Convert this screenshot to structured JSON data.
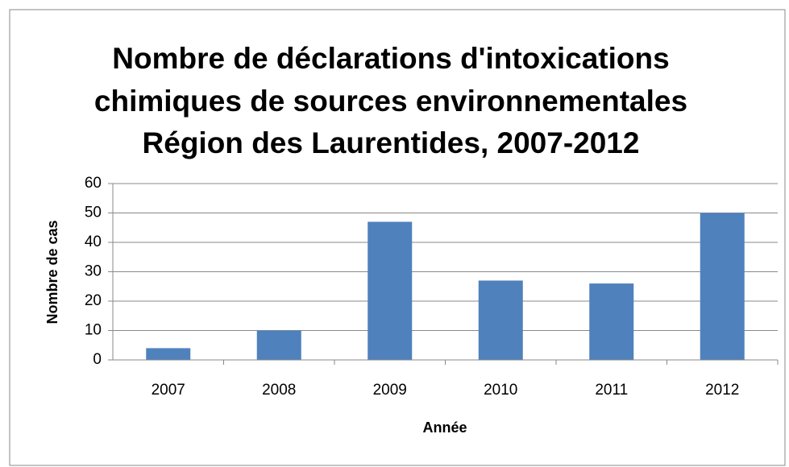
{
  "chart_data": {
    "type": "bar",
    "title": [
      "Nombre de déclarations d'intoxications",
      "chimiques de sources environnementales",
      "Région des Laurentides, 2007-2012"
    ],
    "x_label": "Année",
    "y_label": "Nombre de cas",
    "categories": [
      "2007",
      "2008",
      "2009",
      "2010",
      "2011",
      "2012"
    ],
    "values": [
      4,
      10,
      47,
      27,
      26,
      50
    ],
    "color": "#4f81bd",
    "ylim": [
      0,
      60
    ],
    "yticks": [
      0,
      10,
      20,
      30,
      40,
      50,
      60
    ],
    "grid": true
  }
}
